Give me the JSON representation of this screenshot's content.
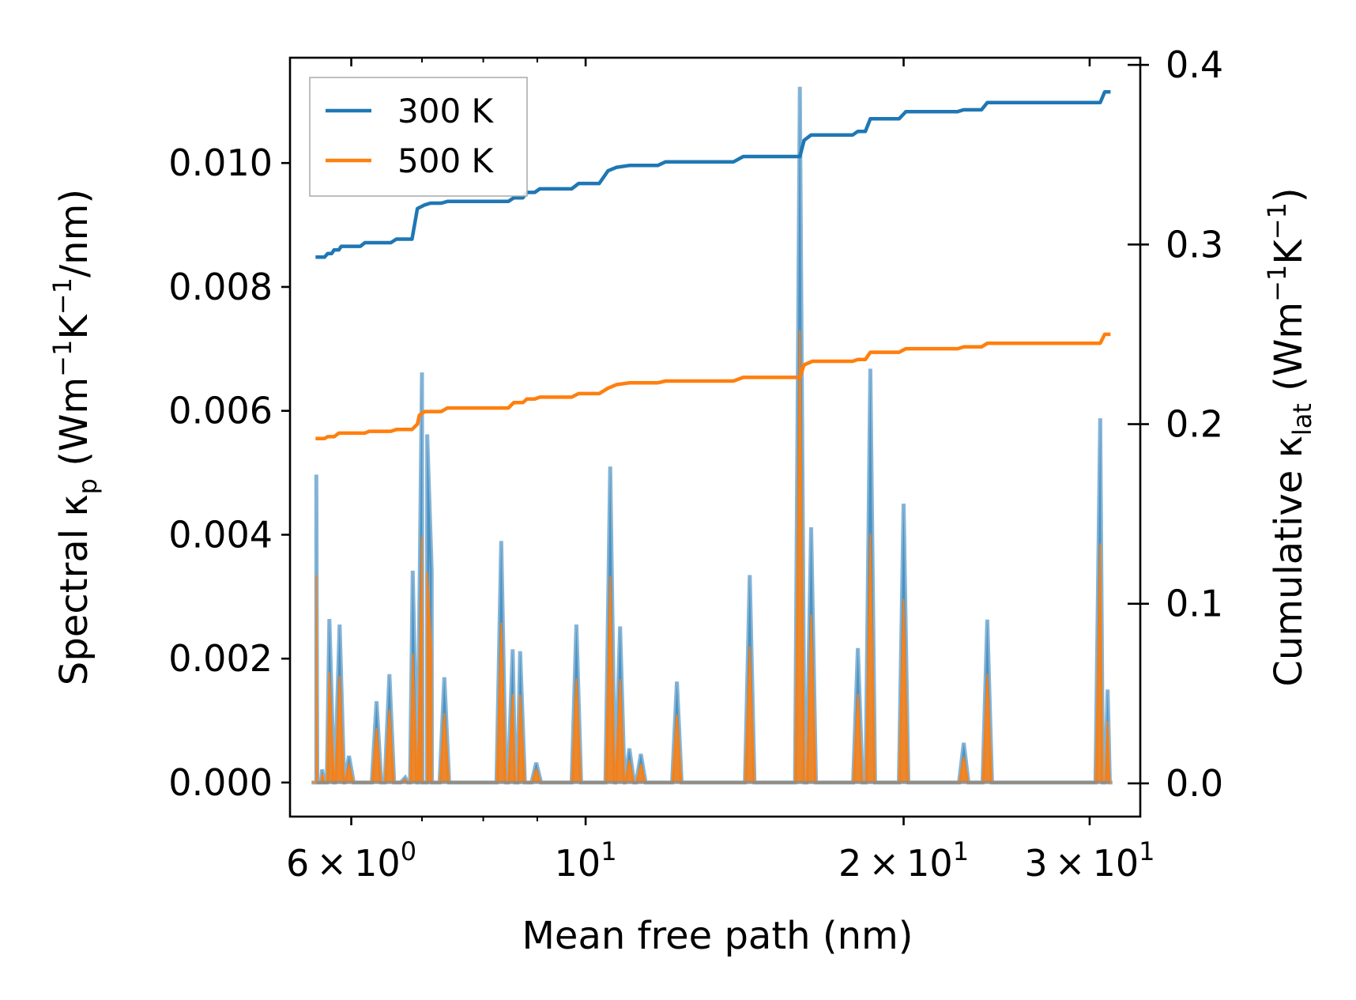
{
  "chart_data": {
    "type": "line",
    "xscale": "log",
    "xlabel": "Mean free path (nm)",
    "xlim": [
      5.25,
      33.5
    ],
    "x_major_ticks": [
      {
        "value": 6,
        "mantissa": "6",
        "exponent": "0"
      },
      {
        "value": 10,
        "mantissa": "",
        "exponent": "1"
      },
      {
        "value": 20,
        "mantissa": "2",
        "exponent": "1"
      },
      {
        "value": 30,
        "mantissa": "3",
        "exponent": "1"
      }
    ],
    "x_minor_ticks": [
      7,
      8,
      9,
      40
    ],
    "ylabel_left": {
      "prefix": "Spectral κ",
      "sub": "p",
      "mid": " (Wm",
      "sup1": "−1",
      "mid2": "K",
      "sup2": "−1",
      "suffix": "/nm)"
    },
    "ylim_left": [
      -0.00055,
      0.0117
    ],
    "yticks_left": [
      "0.000",
      "0.002",
      "0.004",
      "0.006",
      "0.008",
      "0.010"
    ],
    "ylabel_right": {
      "prefix": "Cumulative κ",
      "sub": "lat",
      "mid": " (Wm",
      "sup1": "−1",
      "mid2": "K",
      "sup2": "−1",
      "suffix": ")"
    },
    "ylim_right": [
      -0.0185,
      0.404
    ],
    "yticks_right": [
      "0.0",
      "0.1",
      "0.2",
      "0.3",
      "0.4"
    ],
    "legend": {
      "position": "upper-left",
      "entries": [
        "300 K",
        "500 K"
      ]
    },
    "colors": {
      "300 K": "#1f77b4",
      "500 K": "#ff7f0e"
    },
    "series": [
      {
        "name": "300 K",
        "cumulative": [
          [
            5.55,
            0.293
          ],
          [
            5.66,
            0.293
          ],
          [
            5.7,
            0.295
          ],
          [
            5.75,
            0.295
          ],
          [
            5.78,
            0.297
          ],
          [
            5.84,
            0.297
          ],
          [
            5.87,
            0.299
          ],
          [
            6.12,
            0.299
          ],
          [
            6.18,
            0.301
          ],
          [
            6.54,
            0.301
          ],
          [
            6.62,
            0.303
          ],
          [
            6.85,
            0.303
          ],
          [
            6.93,
            0.32
          ],
          [
            7.04,
            0.322
          ],
          [
            7.13,
            0.323
          ],
          [
            7.3,
            0.323
          ],
          [
            7.4,
            0.324
          ],
          [
            8.45,
            0.324
          ],
          [
            8.55,
            0.326
          ],
          [
            8.72,
            0.326
          ],
          [
            8.8,
            0.329
          ],
          [
            8.95,
            0.329
          ],
          [
            9.05,
            0.331
          ],
          [
            9.7,
            0.331
          ],
          [
            9.85,
            0.334
          ],
          [
            10.3,
            0.334
          ],
          [
            10.5,
            0.341
          ],
          [
            10.7,
            0.343
          ],
          [
            11.0,
            0.344
          ],
          [
            11.7,
            0.344
          ],
          [
            11.9,
            0.346
          ],
          [
            13.8,
            0.346
          ],
          [
            14.1,
            0.349
          ],
          [
            15.95,
            0.349
          ],
          [
            16.1,
            0.358
          ],
          [
            16.35,
            0.361
          ],
          [
            17.9,
            0.361
          ],
          [
            18.1,
            0.363
          ],
          [
            18.4,
            0.363
          ],
          [
            18.6,
            0.37
          ],
          [
            19.8,
            0.37
          ],
          [
            20.1,
            0.374
          ],
          [
            22.5,
            0.374
          ],
          [
            22.8,
            0.375
          ],
          [
            23.7,
            0.375
          ],
          [
            24.0,
            0.379
          ],
          [
            30.7,
            0.379
          ],
          [
            31.0,
            0.385
          ],
          [
            31.4,
            0.385
          ]
        ],
        "spectral_peaks": [
          [
            5.56,
            0.00497
          ],
          [
            5.63,
            0.00021
          ],
          [
            5.72,
            0.00264
          ],
          [
            5.85,
            0.00255
          ],
          [
            5.97,
            0.00043
          ],
          [
            6.34,
            0.00131
          ],
          [
            6.52,
            0.00175
          ],
          [
            6.75,
            8e-05
          ],
          [
            6.86,
            0.00342
          ],
          [
            7.0,
            0.00662
          ],
          [
            7.08,
            0.00562
          ],
          [
            7.15,
            0.00342
          ],
          [
            7.35,
            0.0017
          ],
          [
            8.32,
            0.0039
          ],
          [
            8.53,
            0.00215
          ],
          [
            8.67,
            0.00212
          ],
          [
            8.98,
            0.00032
          ],
          [
            9.8,
            0.00255
          ],
          [
            10.55,
            0.0051
          ],
          [
            10.78,
            0.00252
          ],
          [
            11.0,
            0.00055
          ],
          [
            11.28,
            0.00046
          ],
          [
            12.2,
            0.00163
          ],
          [
            14.3,
            0.00335
          ],
          [
            15.95,
            0.01123
          ],
          [
            16.35,
            0.00412
          ],
          [
            18.1,
            0.00217
          ],
          [
            18.6,
            0.00668
          ],
          [
            20.0,
            0.0045
          ],
          [
            22.8,
            0.00064
          ],
          [
            24.0,
            0.00263
          ],
          [
            30.7,
            0.00588
          ],
          [
            31.2,
            0.0015
          ]
        ]
      },
      {
        "name": "500 K",
        "cumulative": [
          [
            5.55,
            0.192
          ],
          [
            5.66,
            0.192
          ],
          [
            5.7,
            0.193
          ],
          [
            5.78,
            0.193
          ],
          [
            5.84,
            0.195
          ],
          [
            6.18,
            0.195
          ],
          [
            6.24,
            0.196
          ],
          [
            6.54,
            0.196
          ],
          [
            6.62,
            0.197
          ],
          [
            6.85,
            0.197
          ],
          [
            6.93,
            0.2
          ],
          [
            6.96,
            0.205
          ],
          [
            7.04,
            0.207
          ],
          [
            7.3,
            0.207
          ],
          [
            7.4,
            0.209
          ],
          [
            8.45,
            0.209
          ],
          [
            8.55,
            0.212
          ],
          [
            8.72,
            0.212
          ],
          [
            8.8,
            0.214
          ],
          [
            8.95,
            0.214
          ],
          [
            9.05,
            0.215
          ],
          [
            9.7,
            0.215
          ],
          [
            9.85,
            0.217
          ],
          [
            10.3,
            0.217
          ],
          [
            10.5,
            0.22
          ],
          [
            10.7,
            0.222
          ],
          [
            11.0,
            0.223
          ],
          [
            11.7,
            0.223
          ],
          [
            11.9,
            0.224
          ],
          [
            13.8,
            0.224
          ],
          [
            14.1,
            0.226
          ],
          [
            15.95,
            0.226
          ],
          [
            16.1,
            0.233
          ],
          [
            16.4,
            0.235
          ],
          [
            17.9,
            0.235
          ],
          [
            18.1,
            0.236
          ],
          [
            18.4,
            0.236
          ],
          [
            18.6,
            0.24
          ],
          [
            19.8,
            0.24
          ],
          [
            20.1,
            0.242
          ],
          [
            22.5,
            0.242
          ],
          [
            22.8,
            0.243
          ],
          [
            23.7,
            0.243
          ],
          [
            24.0,
            0.245
          ],
          [
            30.7,
            0.245
          ],
          [
            31.0,
            0.25
          ],
          [
            31.4,
            0.25
          ]
        ],
        "spectral_peaks": [
          [
            5.56,
            0.00335
          ],
          [
            5.63,
            0.00014
          ],
          [
            5.72,
            0.00178
          ],
          [
            5.85,
            0.00172
          ],
          [
            5.97,
            0.00029
          ],
          [
            6.34,
            0.00088
          ],
          [
            6.52,
            0.00118
          ],
          [
            6.75,
            5e-05
          ],
          [
            6.86,
            0.00208
          ],
          [
            7.0,
            0.00397
          ],
          [
            7.08,
            0.0034
          ],
          [
            7.15,
            0.00208
          ],
          [
            7.35,
            0.00112
          ],
          [
            8.32,
            0.00258
          ],
          [
            8.53,
            0.00143
          ],
          [
            8.67,
            0.00142
          ],
          [
            8.98,
            0.00021
          ],
          [
            9.8,
            0.00168
          ],
          [
            10.55,
            0.00333
          ],
          [
            10.78,
            0.00167
          ],
          [
            11.0,
            0.00036
          ],
          [
            11.28,
            0.0003
          ],
          [
            12.2,
            0.0011
          ],
          [
            14.3,
            0.0022
          ],
          [
            15.95,
            0.0073
          ],
          [
            16.35,
            0.00271
          ],
          [
            18.1,
            0.00143
          ],
          [
            18.6,
            0.00402
          ],
          [
            20.0,
            0.00296
          ],
          [
            22.8,
            0.00042
          ],
          [
            24.0,
            0.00175
          ],
          [
            30.7,
            0.00386
          ],
          [
            31.2,
            0.00099
          ]
        ]
      }
    ]
  }
}
